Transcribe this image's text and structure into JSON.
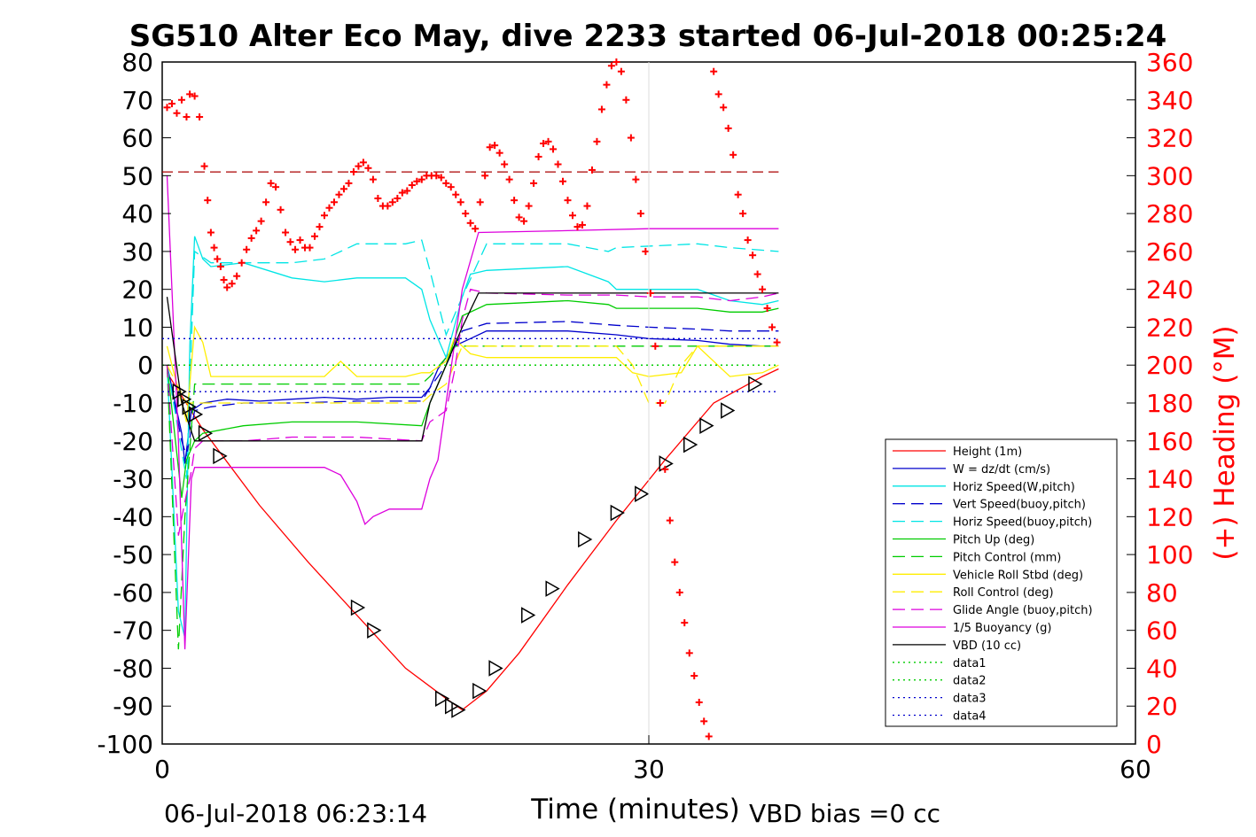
{
  "chart_data": {
    "type": "line",
    "title": "SG510 Alter Eco May, dive 2233 started 06-Jul-2018 00:25:24",
    "xlabel": "Time (minutes)",
    "ylabel_right": "(+) Heading (°M)",
    "xlim": [
      0,
      60
    ],
    "ylim": [
      -100,
      80
    ],
    "ylim_right": [
      0,
      360
    ],
    "x_ticks": [
      "0",
      "30",
      "60"
    ],
    "y_ticks": [
      "80",
      "70",
      "60",
      "50",
      "40",
      "30",
      "20",
      "10",
      "0",
      "-10",
      "-20",
      "-30",
      "-40",
      "-50",
      "-60",
      "-70",
      "-80",
      "-90",
      "-100"
    ],
    "y_ticks_right": [
      "360",
      "340",
      "320",
      "300",
      "280",
      "260",
      "240",
      "220",
      "200",
      "180",
      "160",
      "140",
      "120",
      "100",
      "80",
      "60",
      "40",
      "20",
      "0"
    ],
    "grid": "x at 30",
    "legend_position": "bottom-right",
    "footer_left": "06-Jul-2018 06:23:14",
    "footer_right": "VBD bias =0 cc",
    "colors": {
      "height": "#ff0000",
      "w": "#0000cc",
      "horiz": "#00e5e5",
      "pitch": "#00cc00",
      "roll": "#ffee00",
      "glide": "#dd00dd",
      "buoy": "#dd00dd",
      "vbd": "#000000",
      "heading": "#ff0000"
    },
    "series": [
      {
        "name": "Height (1m)",
        "style": "solid",
        "color": "#ff0000",
        "x": [
          0.3,
          2.5,
          6,
          9,
          12,
          15,
          17.5,
          18.5,
          20,
          22,
          25,
          28,
          31,
          34,
          37,
          38
        ],
        "y": [
          -2,
          -17,
          -37,
          -52,
          -66,
          -80,
          -88,
          -91,
          -86,
          -76,
          -58,
          -41,
          -25,
          -10,
          -3,
          -1
        ]
      },
      {
        "name": "W = dz/dt (cm/s)",
        "style": "solid",
        "color": "#0000cc",
        "x": [
          0.3,
          1.2,
          1.4,
          1.8,
          2.5,
          4,
          6,
          8,
          10,
          12,
          14,
          16,
          16.5,
          17,
          18,
          19,
          20,
          25,
          28,
          30,
          33,
          35,
          37,
          38
        ],
        "y": [
          0,
          -18,
          -26,
          -12,
          -10,
          -9,
          -9.5,
          -9,
          -8.5,
          -9,
          -8.5,
          -8.5,
          -6,
          -1,
          5,
          7,
          9,
          9,
          8,
          7,
          6.5,
          5.5,
          5,
          5
        ]
      },
      {
        "name": "Horiz Speed(W,pitch)",
        "style": "solid",
        "color": "#00e5e5",
        "x": [
          0.3,
          1,
          1.4,
          1.7,
          2,
          2.5,
          3,
          5,
          8,
          10,
          12,
          15,
          16,
          16.5,
          17.5,
          18,
          18.5,
          19,
          20,
          25,
          27.5,
          28,
          30,
          33,
          35,
          37,
          38
        ],
        "y": [
          0,
          -65,
          -72,
          5,
          34,
          28,
          26,
          27,
          23,
          22,
          23,
          23,
          20,
          12,
          2,
          10,
          18,
          24,
          25,
          26,
          22,
          20,
          20,
          20,
          17,
          16,
          17
        ]
      },
      {
        "name": "Vert Speed(buoy,pitch)",
        "style": "dash",
        "color": "#0000cc",
        "x": [
          0.3,
          1.2,
          1.5,
          2,
          3,
          5,
          8,
          12,
          16,
          16.5,
          17.5,
          18.5,
          20,
          25,
          28,
          30,
          33,
          35,
          38
        ],
        "y": [
          0,
          -20,
          -24,
          -12,
          -11,
          -10,
          -10,
          -9.5,
          -9.5,
          -6,
          0,
          9,
          11,
          11.5,
          10.5,
          10,
          9.5,
          9,
          9
        ]
      },
      {
        "name": "Horiz Speed(buoy,pitch)",
        "style": "dash",
        "color": "#00e5e5",
        "x": [
          0.3,
          1.5,
          2,
          3,
          5,
          8,
          10,
          11,
          12,
          15,
          16,
          16.5,
          17.5,
          18.5,
          20,
          25,
          27.5,
          28,
          33,
          35,
          38
        ],
        "y": [
          0,
          -30,
          30,
          27,
          27,
          27,
          28,
          30,
          32,
          32,
          33,
          25,
          8,
          18,
          32,
          32,
          30,
          31,
          32,
          31,
          30
        ]
      },
      {
        "name": "Pitch Up (deg)",
        "style": "solid",
        "color": "#00cc00",
        "x": [
          0.3,
          1.2,
          1.5,
          2,
          2.5,
          5,
          8,
          12,
          16,
          16.5,
          17.5,
          18.5,
          20,
          25,
          27.5,
          28,
          33,
          35,
          37,
          38
        ],
        "y": [
          0,
          -35,
          -25,
          -20,
          -18,
          -16,
          -15,
          -15,
          -16,
          -10,
          0,
          13,
          16,
          17,
          16,
          15,
          15,
          14,
          14,
          15
        ]
      },
      {
        "name": "Pitch Control (mm)",
        "style": "dash",
        "color": "#00cc00",
        "x": [
          0.3,
          1,
          1.4,
          2,
          16,
          16.5,
          17.5,
          18,
          38
        ],
        "y": [
          0,
          -75,
          -40,
          -5,
          -5,
          -3,
          2,
          5,
          5
        ]
      },
      {
        "name": "Vehicle Roll Stbd (deg)",
        "style": "solid",
        "color": "#ffee00",
        "x": [
          0.3,
          1.5,
          2,
          2.5,
          3,
          4,
          10,
          11,
          12,
          15,
          16,
          16.5,
          17.5,
          18,
          19,
          20,
          28,
          29,
          30,
          32,
          33,
          35,
          37,
          38
        ],
        "y": [
          5,
          -15,
          10,
          6,
          -3,
          -3,
          -3,
          1,
          -3,
          -3,
          -2,
          -2,
          1,
          7,
          3,
          2,
          2,
          -2,
          -3,
          -2,
          5,
          -3,
          -2,
          0
        ]
      },
      {
        "name": "Roll Control (deg)",
        "style": "dash",
        "color": "#ffee00",
        "x": [
          0.3,
          1.5,
          2,
          5,
          10,
          16,
          16.5,
          17.5,
          18.5,
          20,
          28,
          29,
          30,
          31,
          32,
          33,
          35,
          38
        ],
        "y": [
          0,
          -10,
          -10,
          -10,
          -10,
          -10,
          -8,
          -5,
          5,
          5,
          5,
          0,
          -10,
          -10,
          0,
          5,
          5,
          5
        ]
      },
      {
        "name": "Glide Angle (buoy,pitch)",
        "style": "dash",
        "color": "#dd00dd",
        "x": [
          0.3,
          1,
          1.4,
          1.8,
          2,
          2.5,
          5,
          8,
          12,
          16,
          16.5,
          17.5,
          18,
          18.5,
          19,
          20,
          25,
          28,
          30,
          33,
          35,
          37,
          38
        ],
        "y": [
          0,
          -45,
          -36,
          -28,
          -22,
          -20,
          -20,
          -19,
          -19,
          -20,
          -15,
          -12,
          -2,
          12,
          20,
          19,
          18.5,
          18.5,
          18,
          18,
          17,
          18,
          19
        ]
      },
      {
        "name": "1/5 Buoyancy (g)",
        "style": "solid",
        "color": "#dd00dd",
        "x": [
          0.3,
          1,
          1.4,
          1.8,
          2,
          2.5,
          5,
          10,
          11,
          12,
          12.5,
          13,
          14,
          15,
          16,
          16.5,
          17,
          18,
          18.5,
          19.5,
          25,
          30,
          35,
          38
        ],
        "y": [
          50,
          -20,
          -75,
          -30,
          -27,
          -27,
          -27,
          -27,
          -29,
          -36,
          -42,
          -40,
          -38,
          -38,
          -38,
          -30,
          -25,
          5,
          20,
          35,
          35.5,
          36,
          36,
          36
        ]
      },
      {
        "name": "VBD (10 cc)",
        "style": "solid",
        "color": "#000000",
        "x": [
          0.3,
          1.2,
          2,
          16,
          16.5,
          17.5,
          18.5,
          19.5,
          38
        ],
        "y": [
          18,
          -10,
          -20,
          -20,
          -10,
          0,
          10,
          19,
          19
        ]
      },
      {
        "name": "data1",
        "style": "dot",
        "color": "#00cc00",
        "x": [
          0,
          38
        ],
        "y": [
          0,
          0
        ]
      },
      {
        "name": "data2",
        "style": "dot",
        "color": "#00cc00",
        "x": [
          0,
          38
        ],
        "y": [
          0,
          0
        ]
      },
      {
        "name": "data3",
        "style": "dot",
        "color": "#0000cc",
        "x": [
          0,
          38
        ],
        "y": [
          7,
          7
        ]
      },
      {
        "name": "data4",
        "style": "dot",
        "color": "#0000cc",
        "x": [
          0,
          38
        ],
        "y": [
          -7,
          -7
        ]
      },
      {
        "name": "",
        "style": "dashdark",
        "color": "#aa0000",
        "x": [
          0,
          38
        ],
        "y": [
          51,
          51
        ]
      }
    ],
    "heading": {
      "x": [
        0.3,
        0.6,
        0.9,
        1.2,
        1.5,
        1.7,
        2,
        2.3,
        2.6,
        2.8,
        3,
        3.2,
        3.4,
        3.6,
        3.8,
        4,
        4.3,
        4.6,
        4.9,
        5.2,
        5.5,
        5.8,
        6.1,
        6.4,
        6.7,
        7,
        7.3,
        7.6,
        7.9,
        8.2,
        8.5,
        8.8,
        9.1,
        9.4,
        9.7,
        10,
        10.3,
        10.6,
        10.9,
        11.2,
        11.5,
        11.8,
        12.1,
        12.4,
        12.7,
        13,
        13.3,
        13.6,
        13.9,
        14.2,
        14.5,
        14.8,
        15.1,
        15.4,
        15.7,
        16,
        16.3,
        16.6,
        16.9,
        17.2,
        17.5,
        17.8,
        18.1,
        18.4,
        18.7,
        19,
        19.3,
        19.6,
        19.9,
        20.2,
        20.5,
        20.8,
        21.1,
        21.4,
        21.7,
        22,
        22.3,
        22.6,
        22.9,
        23.2,
        23.5,
        23.8,
        24.1,
        24.4,
        24.7,
        25,
        25.3,
        25.6,
        25.9,
        26.2,
        26.5,
        26.8,
        27.1,
        27.4,
        27.7,
        28,
        28.3,
        28.6,
        28.9,
        29.2,
        29.5,
        29.8,
        30.1,
        30.4,
        30.7,
        31,
        31.3,
        31.6,
        31.9,
        32.2,
        32.5,
        32.8,
        33.1,
        33.4,
        33.7,
        34,
        34.3,
        34.6,
        34.9,
        35.2,
        35.5,
        35.8,
        36.1,
        36.4,
        36.7,
        37,
        37.3,
        37.6,
        37.9
      ],
      "y": [
        336,
        338,
        333,
        340,
        331,
        343,
        342,
        331,
        305,
        287,
        270,
        262,
        256,
        252,
        245,
        241,
        243,
        247,
        254,
        261,
        267,
        271,
        276,
        286,
        296,
        294,
        282,
        270,
        265,
        261,
        266,
        262,
        262,
        268,
        273,
        279,
        283,
        286,
        290,
        293,
        296,
        302,
        305,
        307,
        304,
        298,
        288,
        284,
        284,
        286,
        288,
        291,
        292,
        295,
        297,
        298,
        300,
        300,
        300,
        299,
        296,
        294,
        290,
        286,
        280,
        275,
        272,
        286,
        300,
        315,
        316,
        312,
        306,
        298,
        287,
        278,
        276,
        284,
        296,
        310,
        317,
        318,
        314,
        306,
        297,
        287,
        279,
        273,
        274,
        284,
        303,
        318,
        335,
        348,
        358,
        360,
        355,
        340,
        320,
        298,
        280,
        260,
        238,
        210,
        180,
        145,
        118,
        96,
        80,
        64,
        48,
        36,
        22,
        12,
        4,
        355,
        343,
        336,
        325,
        311,
        290,
        280,
        266,
        258,
        248,
        240,
        230,
        220,
        212
      ]
    },
    "triangles": {
      "x": [
        1,
        1.3,
        1.6,
        2,
        2.6,
        3.5,
        12,
        13,
        17.2,
        17.8,
        18.2,
        19.5,
        20.5,
        22.5,
        24,
        26,
        28,
        29.5,
        31,
        32.5,
        33.5,
        34.8,
        36.5
      ],
      "y": [
        -7,
        -9,
        -11,
        -13,
        -18,
        -24,
        -64,
        -70,
        -88,
        -90,
        -91,
        -86,
        -80,
        -66,
        -59,
        -46,
        -39,
        -34,
        -26,
        -21,
        -16,
        -12,
        -5
      ]
    }
  }
}
